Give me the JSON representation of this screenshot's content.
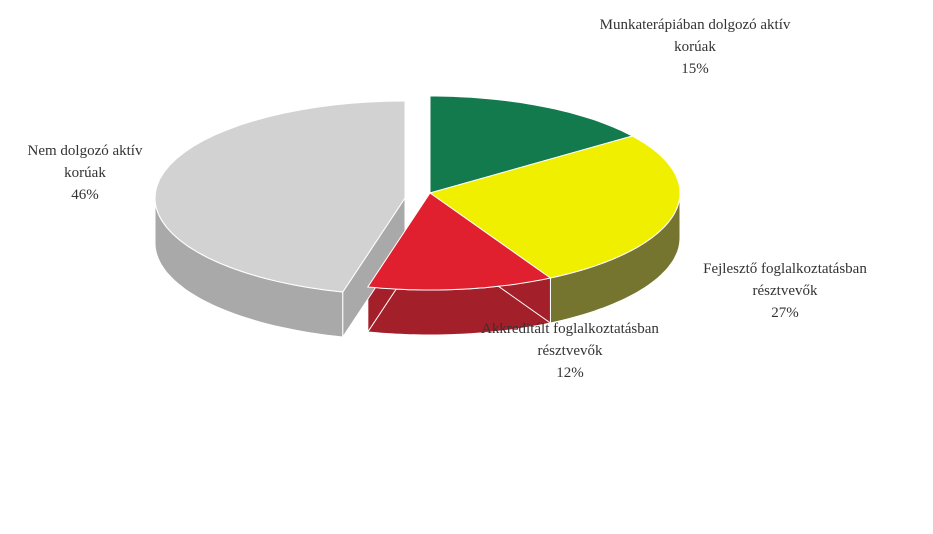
{
  "chart_data": {
    "type": "pie",
    "categories": [
      "Munkaterápiában dolgozó aktív korúak",
      "Fejlesztő foglalkoztatásban résztvevők",
      "Akkreditált foglalkoztatásban résztvevők",
      "Nem dolgozó aktív korúak"
    ],
    "values": [
      15,
      27,
      12,
      46
    ],
    "value_labels": [
      "15%",
      "27%",
      "12%",
      "46%"
    ],
    "colors": [
      "#127a4c",
      "#f0ef00",
      "#e0202e",
      "#d2d2d2"
    ],
    "side_colors": [
      "#0b5134",
      "#757530",
      "#a3202a",
      "#a9a9a9"
    ]
  }
}
